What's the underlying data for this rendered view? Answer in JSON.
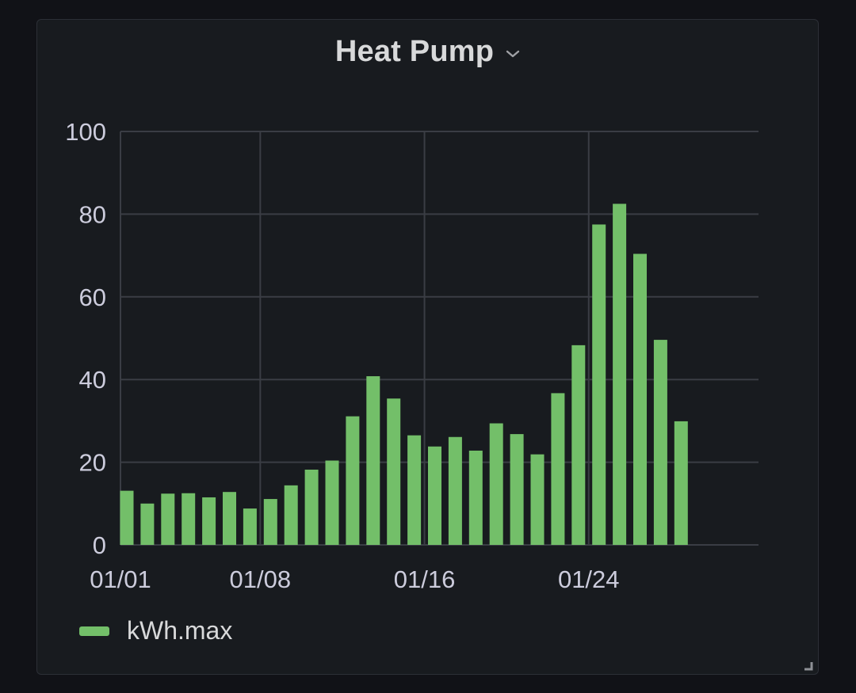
{
  "panel": {
    "title": "Heat Pump",
    "menu_icon": "chevron-down-icon",
    "resize_icon": "resize-handle-icon"
  },
  "legend": {
    "label": "kWh.max",
    "color": "#73bf69"
  },
  "chart_data": {
    "type": "bar",
    "title": "Heat Pump",
    "xlabel": "",
    "ylabel": "",
    "x": [
      "01/01",
      "01/02",
      "01/03",
      "01/04",
      "01/05",
      "01/06",
      "01/07",
      "01/08",
      "01/09",
      "01/10",
      "01/11",
      "01/12",
      "01/13",
      "01/14",
      "01/15",
      "01/16",
      "01/17",
      "01/18",
      "01/19",
      "01/20",
      "01/21",
      "01/22",
      "01/23",
      "01/24",
      "01/25",
      "01/26",
      "01/27",
      "01/28"
    ],
    "x_ticks": [
      "01/01",
      "01/08",
      "01/16",
      "01/24"
    ],
    "series": [
      {
        "name": "kWh.max",
        "color": "#73bf69",
        "values": [
          13.1,
          10.0,
          12.4,
          12.5,
          11.5,
          12.8,
          8.8,
          11.1,
          14.4,
          18.2,
          20.4,
          31.1,
          40.8,
          35.4,
          26.5,
          23.8,
          26.1,
          22.8,
          29.4,
          26.8,
          21.9,
          36.7,
          48.3,
          77.5,
          82.5,
          70.4,
          49.6,
          29.9
        ]
      }
    ],
    "y_ticks": [
      0,
      20,
      40,
      60,
      80,
      100
    ],
    "ylim": [
      0,
      100
    ],
    "grid": true,
    "legend_position": "bottom-left"
  }
}
